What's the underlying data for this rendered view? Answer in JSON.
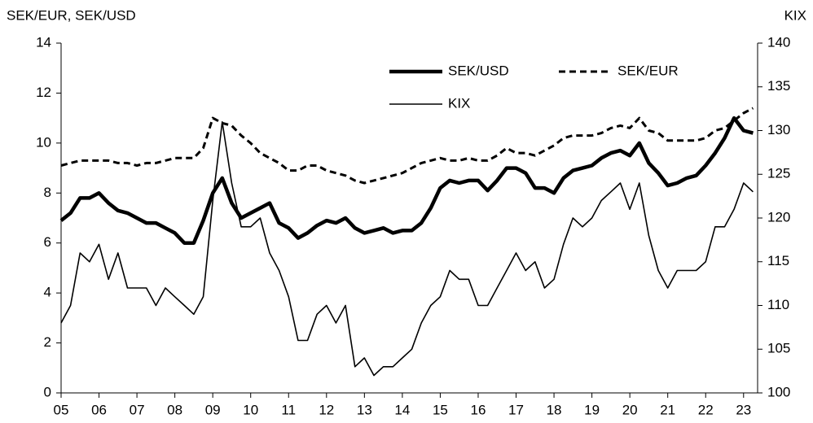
{
  "chart_data": {
    "type": "line",
    "y_label": "SEK/EUR, SEK/USD",
    "y2_label": "KIX",
    "x": [
      2005,
      2005.25,
      2005.5,
      2005.75,
      2006,
      2006.25,
      2006.5,
      2006.75,
      2007,
      2007.25,
      2007.5,
      2007.75,
      2008,
      2008.25,
      2008.5,
      2008.75,
      2009,
      2009.25,
      2009.5,
      2009.75,
      2010,
      2010.25,
      2010.5,
      2010.75,
      2011,
      2011.25,
      2011.5,
      2011.75,
      2012,
      2012.25,
      2012.5,
      2012.75,
      2013,
      2013.25,
      2013.5,
      2013.75,
      2014,
      2014.25,
      2014.5,
      2014.75,
      2015,
      2015.25,
      2015.5,
      2015.75,
      2016,
      2016.25,
      2016.5,
      2016.75,
      2017,
      2017.25,
      2017.5,
      2017.75,
      2018,
      2018.25,
      2018.5,
      2018.75,
      2019,
      2019.25,
      2019.5,
      2019.75,
      2020,
      2020.25,
      2020.5,
      2020.75,
      2021,
      2021.25,
      2021.5,
      2021.75,
      2022,
      2022.25,
      2022.5,
      2022.75,
      2023,
      2023.25
    ],
    "series": [
      {
        "name": "SEK/USD",
        "color": "#000000",
        "line_width": 4.5,
        "dash": false,
        "values": [
          6.9,
          7.2,
          7.8,
          7.8,
          8.0,
          7.6,
          7.3,
          7.2,
          7.0,
          6.8,
          6.8,
          6.6,
          6.4,
          6.0,
          6.0,
          6.9,
          8.0,
          8.6,
          7.6,
          7.0,
          7.2,
          7.4,
          7.6,
          6.8,
          6.6,
          6.2,
          6.4,
          6.7,
          6.9,
          6.8,
          7.0,
          6.6,
          6.4,
          6.5,
          6.6,
          6.4,
          6.5,
          6.5,
          6.8,
          7.4,
          8.2,
          8.5,
          8.4,
          8.5,
          8.5,
          8.1,
          8.5,
          9.0,
          9.0,
          8.8,
          8.2,
          8.2,
          8.0,
          8.6,
          8.9,
          9.0,
          9.1,
          9.4,
          9.6,
          9.7,
          9.5,
          10.0,
          9.2,
          8.8,
          8.3,
          8.4,
          8.6,
          8.7,
          9.1,
          9.6,
          10.2,
          11.0,
          10.5,
          10.4
        ]
      },
      {
        "name": "SEK/EUR",
        "color": "#000000",
        "line_width": 3,
        "dash": true,
        "values": [
          9.1,
          9.2,
          9.3,
          9.3,
          9.3,
          9.3,
          9.2,
          9.2,
          9.1,
          9.2,
          9.2,
          9.3,
          9.4,
          9.4,
          9.4,
          9.8,
          11.0,
          10.8,
          10.7,
          10.3,
          10.0,
          9.6,
          9.4,
          9.2,
          8.9,
          8.9,
          9.1,
          9.1,
          8.9,
          8.8,
          8.7,
          8.5,
          8.4,
          8.5,
          8.6,
          8.7,
          8.8,
          9.0,
          9.2,
          9.3,
          9.4,
          9.3,
          9.3,
          9.4,
          9.3,
          9.3,
          9.5,
          9.8,
          9.6,
          9.6,
          9.5,
          9.7,
          9.9,
          10.2,
          10.3,
          10.3,
          10.3,
          10.4,
          10.6,
          10.7,
          10.6,
          11.0,
          10.5,
          10.4,
          10.1,
          10.1,
          10.1,
          10.1,
          10.2,
          10.5,
          10.6,
          10.9,
          11.2,
          11.4
        ]
      },
      {
        "name": "KIX",
        "color": "#000000",
        "line_width": 1.6,
        "dash": false,
        "axis": "y2",
        "values": [
          108,
          110,
          116,
          115,
          117,
          113,
          116,
          112,
          112,
          112,
          110,
          112,
          111,
          110,
          109,
          111,
          122,
          131,
          124,
          119,
          119,
          120,
          116,
          114,
          111,
          106,
          106,
          109,
          110,
          108,
          110,
          103,
          104,
          102,
          103,
          103,
          104,
          105,
          108,
          110,
          111,
          114,
          113,
          113,
          110,
          110,
          112,
          114,
          116,
          114,
          115,
          112,
          113,
          117,
          120,
          119,
          120,
          122,
          123,
          124,
          121,
          124,
          118,
          114,
          112,
          114,
          114,
          114,
          115,
          119,
          119,
          121,
          124,
          123
        ]
      }
    ],
    "xlim": [
      2005,
      2023.37
    ],
    "xticks": [
      {
        "value": 2005,
        "label": "05"
      },
      {
        "value": 2006,
        "label": "06"
      },
      {
        "value": 2007,
        "label": "07"
      },
      {
        "value": 2008,
        "label": "08"
      },
      {
        "value": 2009,
        "label": "09"
      },
      {
        "value": 2010,
        "label": "10"
      },
      {
        "value": 2011,
        "label": "11"
      },
      {
        "value": 2012,
        "label": "12"
      },
      {
        "value": 2013,
        "label": "13"
      },
      {
        "value": 2014,
        "label": "14"
      },
      {
        "value": 2015,
        "label": "15"
      },
      {
        "value": 2016,
        "label": "16"
      },
      {
        "value": 2017,
        "label": "17"
      },
      {
        "value": 2018,
        "label": "18"
      },
      {
        "value": 2019,
        "label": "19"
      },
      {
        "value": 2020,
        "label": "20"
      },
      {
        "value": 2021,
        "label": "21"
      },
      {
        "value": 2022,
        "label": "22"
      },
      {
        "value": 2023,
        "label": "23"
      }
    ],
    "ylim": [
      0,
      14
    ],
    "yticks": [
      0,
      2,
      4,
      6,
      8,
      10,
      12,
      14
    ],
    "y2lim": [
      100,
      140
    ],
    "y2ticks": [
      100,
      105,
      110,
      115,
      120,
      125,
      130,
      135,
      140
    ],
    "grid": false
  }
}
